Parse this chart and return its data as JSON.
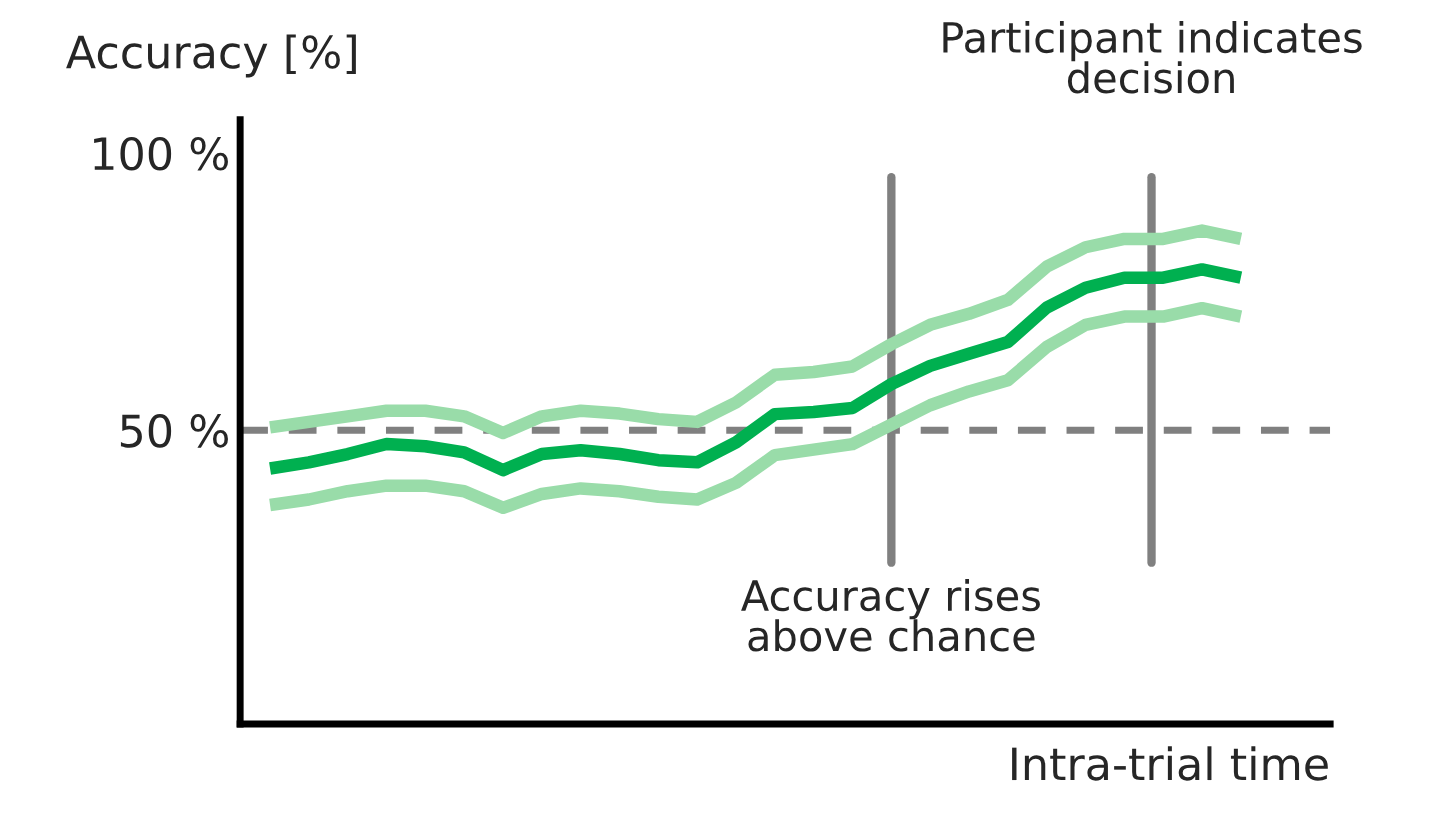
{
  "chart_data": {
    "type": "line",
    "ylabel": "Accuracy [%]",
    "xlabel": "Intra-trial time",
    "categories": [
      null,
      null,
      null,
      null,
      null,
      null,
      null,
      null,
      null,
      null,
      null,
      null,
      null,
      null,
      null,
      null,
      null,
      null,
      null,
      null,
      null,
      null,
      null,
      null,
      null,
      null
    ],
    "series": [
      {
        "color": "#99dca9",
        "values": [
          50.5,
          51.5,
          52.5,
          53.5,
          53.5,
          52.5,
          49.5,
          52.5,
          53.5,
          53,
          52,
          51.5,
          55,
          60,
          60.5,
          61.5,
          65.5,
          69,
          71,
          73.5,
          79.5,
          83,
          84.5,
          84.5,
          86,
          84.5
        ]
      },
      {
        "color": "#00b050",
        "values": [
          43.1,
          44.2,
          45.7,
          47.5,
          47.1,
          46,
          42.8,
          45.7,
          46.4,
          45.7,
          44.6,
          44.2,
          47.8,
          52.9,
          53.3,
          54,
          58.3,
          61.6,
          63.8,
          65.9,
          72.1,
          75.7,
          77.5,
          77.5,
          79,
          77.5
        ]
      },
      {
        "color": "#99dca9",
        "values": [
          36.5,
          37.5,
          39,
          40,
          40,
          39,
          36,
          38.5,
          39.5,
          39,
          38,
          37.5,
          40.5,
          45.5,
          46.5,
          47.5,
          51,
          54.5,
          57,
          59,
          65,
          69,
          70.5,
          70.5,
          72,
          70.5
        ]
      }
    ],
    "ylim": [
      -3,
      106
    ],
    "yticks": [
      {
        "value": 100,
        "label": "100 %"
      },
      {
        "value": 50,
        "label": "50 %"
      }
    ],
    "tick_labels": "y",
    "grid": false,
    "marker": "none",
    "line_style": "solid",
    "annotations": [
      "Accuracy rises\nabove chance",
      "Participant indicates\ndecision"
    ],
    "ref_lines": [
      {
        "axis": "y",
        "value": 50,
        "color": "#808080",
        "line_style": "dashed"
      }
    ]
  }
}
